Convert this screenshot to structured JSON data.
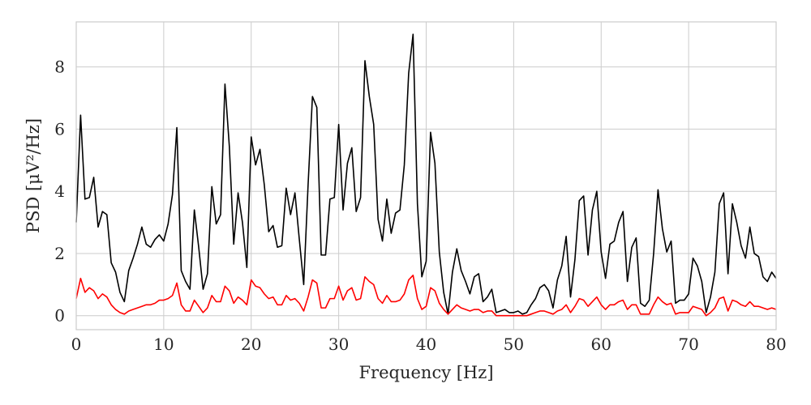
{
  "chart_data": {
    "type": "line",
    "title": "",
    "xlabel": "Frequency [Hz]",
    "ylabel": "PSD [μV²/Hz]",
    "xlim": [
      0,
      80
    ],
    "ylim": [
      -0.45,
      9.45
    ],
    "xticks": [
      0,
      10,
      20,
      30,
      40,
      50,
      60,
      70,
      80
    ],
    "yticks": [
      0,
      2,
      4,
      6,
      8
    ],
    "grid": true,
    "x": [
      0,
      0.5,
      1,
      1.5,
      2,
      2.5,
      3,
      3.5,
      4,
      4.5,
      5,
      5.5,
      6,
      6.5,
      7,
      7.5,
      8,
      8.5,
      9,
      9.5,
      10,
      10.5,
      11,
      11.5,
      12,
      12.5,
      13,
      13.5,
      14,
      14.5,
      15,
      15.5,
      16,
      16.5,
      17,
      17.5,
      18,
      18.5,
      19,
      19.5,
      20,
      20.5,
      21,
      21.5,
      22,
      22.5,
      23,
      23.5,
      24,
      24.5,
      25,
      25.5,
      26,
      26.5,
      27,
      27.5,
      28,
      28.5,
      29,
      29.5,
      30,
      30.5,
      31,
      31.5,
      32,
      32.5,
      33,
      33.5,
      34,
      34.5,
      35,
      35.5,
      36,
      36.5,
      37,
      37.5,
      38,
      38.5,
      39,
      39.5,
      40,
      40.5,
      41,
      41.5,
      42,
      42.5,
      43,
      43.5,
      44,
      44.5,
      45,
      45.5,
      46,
      46.5,
      47,
      47.5,
      48,
      48.5,
      49,
      49.5,
      50,
      50.5,
      51,
      51.5,
      52,
      52.5,
      53,
      53.5,
      54,
      54.5,
      55,
      55.5,
      56,
      56.5,
      57,
      57.5,
      58,
      58.5,
      59,
      59.5,
      60,
      60.5,
      61,
      61.5,
      62,
      62.5,
      63,
      63.5,
      64,
      64.5,
      65,
      65.5,
      66,
      66.5,
      67,
      67.5,
      68,
      68.5,
      69,
      69.5,
      70,
      70.5,
      71,
      71.5,
      72,
      72.5,
      73,
      73.5,
      74,
      74.5,
      75,
      75.5,
      76,
      76.5,
      77,
      77.5,
      78,
      78.5,
      79,
      79.5,
      80
    ],
    "series": [
      {
        "color": "#000000",
        "values": [
          3.0,
          6.45,
          3.75,
          3.8,
          4.45,
          2.85,
          3.35,
          3.25,
          1.7,
          1.4,
          0.75,
          0.45,
          1.45,
          1.85,
          2.3,
          2.85,
          2.3,
          2.2,
          2.45,
          2.6,
          2.4,
          2.95,
          3.9,
          6.05,
          1.45,
          1.1,
          0.85,
          3.4,
          2.2,
          0.85,
          1.35,
          4.15,
          2.95,
          3.25,
          7.45,
          5.45,
          2.3,
          3.95,
          3.0,
          1.55,
          5.75,
          4.85,
          5.35,
          4.2,
          2.7,
          2.9,
          2.2,
          2.25,
          4.1,
          3.25,
          3.95,
          2.45,
          1.0,
          4.2,
          7.05,
          6.7,
          1.95,
          1.95,
          3.75,
          3.8,
          6.15,
          3.4,
          4.9,
          5.4,
          3.35,
          3.8,
          8.2,
          7.05,
          6.15,
          3.1,
          2.4,
          3.75,
          2.65,
          3.3,
          3.4,
          4.85,
          7.8,
          9.05,
          3.6,
          1.25,
          1.75,
          5.9,
          4.9,
          2.05,
          0.75,
          0.05,
          1.4,
          2.15,
          1.45,
          1.1,
          0.7,
          1.25,
          1.35,
          0.45,
          0.6,
          0.85,
          0.1,
          0.15,
          0.2,
          0.1,
          0.1,
          0.15,
          0.05,
          0.1,
          0.35,
          0.55,
          0.9,
          1.0,
          0.8,
          0.25,
          1.15,
          1.6,
          2.55,
          0.6,
          1.8,
          3.7,
          3.85,
          1.95,
          3.4,
          4.0,
          2.05,
          1.2,
          2.3,
          2.4,
          3.0,
          3.35,
          1.1,
          2.2,
          2.5,
          0.4,
          0.3,
          0.5,
          2.0,
          4.05,
          2.8,
          2.05,
          2.4,
          0.4,
          0.5,
          0.5,
          0.7,
          1.85,
          1.6,
          1.1,
          0.1,
          0.6,
          1.4,
          3.6,
          3.95,
          1.35,
          3.6,
          3.0,
          2.25,
          1.85,
          2.85,
          2.0,
          1.9,
          1.25,
          1.1,
          1.4,
          1.2
        ]
      },
      {
        "color": "#ff0000",
        "values": [
          0.55,
          1.2,
          0.75,
          0.9,
          0.8,
          0.55,
          0.7,
          0.6,
          0.35,
          0.2,
          0.1,
          0.05,
          0.15,
          0.2,
          0.25,
          0.3,
          0.35,
          0.35,
          0.4,
          0.5,
          0.5,
          0.55,
          0.65,
          1.05,
          0.35,
          0.15,
          0.15,
          0.5,
          0.3,
          0.1,
          0.25,
          0.65,
          0.45,
          0.45,
          0.95,
          0.8,
          0.4,
          0.6,
          0.5,
          0.35,
          1.15,
          0.95,
          0.9,
          0.7,
          0.55,
          0.6,
          0.35,
          0.35,
          0.65,
          0.5,
          0.55,
          0.4,
          0.15,
          0.6,
          1.15,
          1.05,
          0.25,
          0.25,
          0.55,
          0.55,
          0.95,
          0.5,
          0.8,
          0.9,
          0.5,
          0.55,
          1.25,
          1.1,
          1.0,
          0.55,
          0.4,
          0.65,
          0.45,
          0.45,
          0.5,
          0.7,
          1.15,
          1.3,
          0.55,
          0.2,
          0.3,
          0.9,
          0.8,
          0.4,
          0.2,
          0.05,
          0.2,
          0.35,
          0.25,
          0.2,
          0.15,
          0.2,
          0.2,
          0.1,
          0.15,
          0.15,
          0.0,
          0.0,
          0.0,
          0.0,
          0.0,
          0.0,
          0.0,
          0.0,
          0.05,
          0.1,
          0.15,
          0.15,
          0.1,
          0.05,
          0.15,
          0.2,
          0.35,
          0.1,
          0.3,
          0.55,
          0.5,
          0.3,
          0.45,
          0.6,
          0.35,
          0.2,
          0.35,
          0.35,
          0.45,
          0.5,
          0.2,
          0.35,
          0.35,
          0.05,
          0.05,
          0.05,
          0.35,
          0.6,
          0.45,
          0.35,
          0.4,
          0.05,
          0.1,
          0.1,
          0.1,
          0.3,
          0.25,
          0.2,
          0.0,
          0.1,
          0.25,
          0.55,
          0.6,
          0.15,
          0.5,
          0.45,
          0.35,
          0.3,
          0.45,
          0.3,
          0.3,
          0.25,
          0.2,
          0.25,
          0.2
        ]
      }
    ]
  }
}
